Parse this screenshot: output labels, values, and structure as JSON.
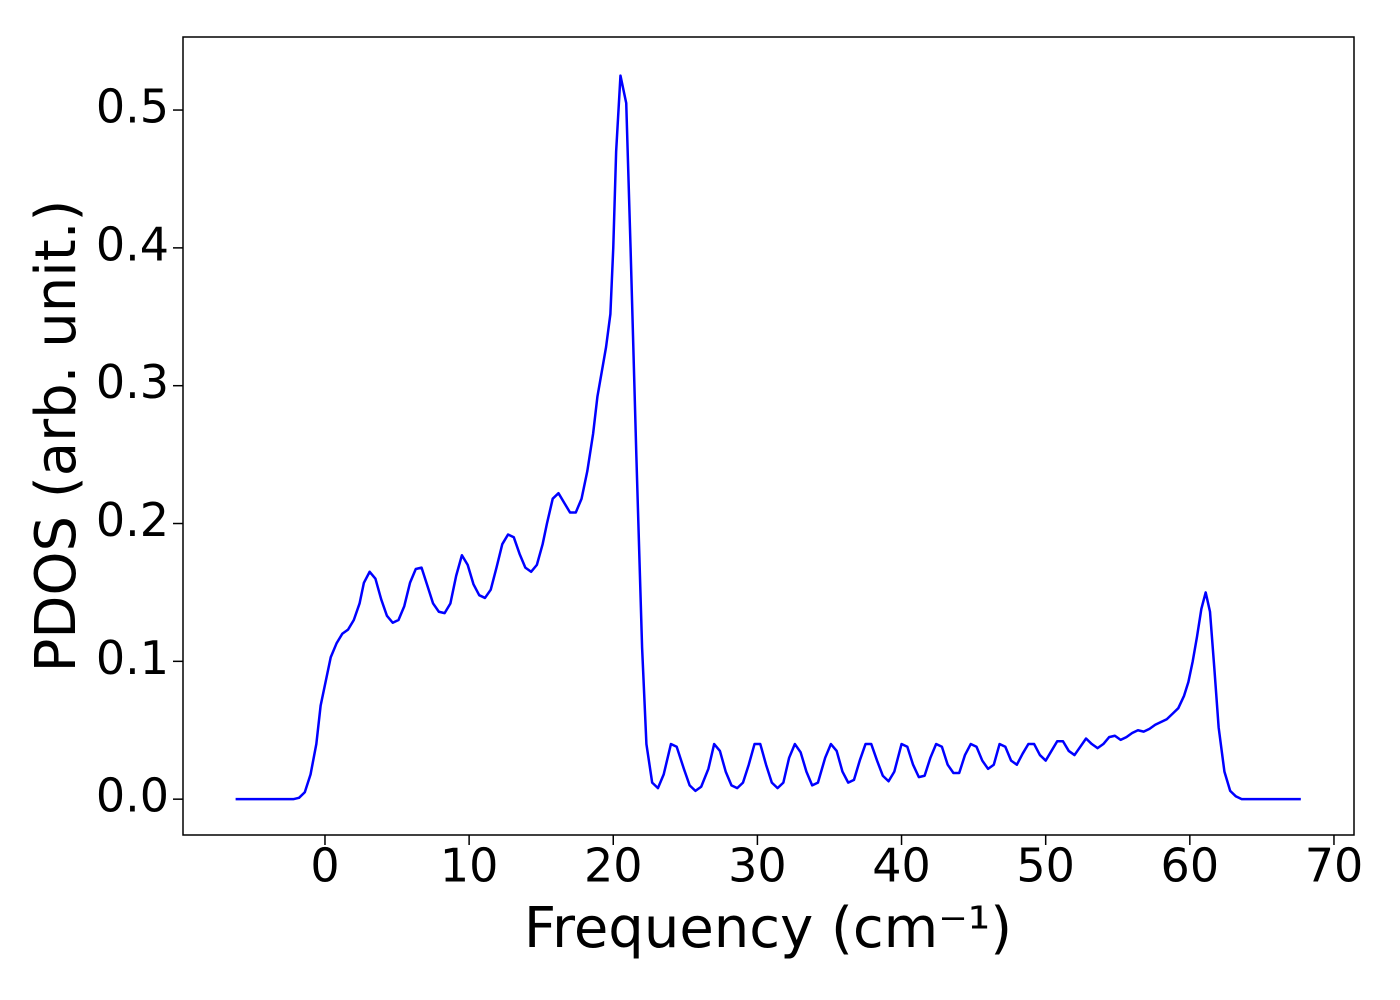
{
  "chart_data": {
    "type": "line",
    "xlabel": "Frequency (cm⁻¹)",
    "ylabel": "PDOS (arb. unit.)",
    "color": "#0000ff",
    "xlim": [
      -9.85,
      71.39
    ],
    "ylim": [
      -0.026,
      0.553
    ],
    "xticks": [
      0,
      10,
      20,
      30,
      40,
      50,
      60,
      70
    ],
    "yticks": [
      {
        "value": 0,
        "label": "0.0"
      },
      0.1,
      0.2,
      0.3,
      0.4,
      0.5
    ],
    "x": [
      -6.2,
      -2.2,
      -1.8,
      -1.4,
      -1.0,
      -0.6,
      -0.3,
      0.1,
      0.4,
      0.8,
      1.2,
      1.6,
      2.0,
      2.4,
      2.7,
      3.1,
      3.5,
      3.9,
      4.3,
      4.7,
      5.1,
      5.5,
      5.9,
      6.3,
      6.7,
      7.1,
      7.5,
      7.9,
      8.3,
      8.7,
      9.1,
      9.5,
      9.9,
      10.3,
      10.7,
      11.1,
      11.5,
      11.9,
      12.3,
      12.7,
      13.1,
      13.5,
      13.9,
      14.3,
      14.7,
      15.1,
      15.4,
      15.8,
      16.2,
      16.6,
      17.0,
      17.4,
      17.8,
      18.2,
      18.6,
      18.9,
      19.2,
      19.5,
      19.8,
      20.0,
      20.2,
      20.5,
      20.9,
      21.2,
      21.6,
      22.0,
      22.3,
      22.7,
      23.1,
      23.5,
      24.0,
      24.4,
      24.9,
      25.3,
      25.7,
      26.1,
      26.6,
      27.0,
      27.4,
      27.8,
      28.2,
      28.6,
      29.0,
      29.4,
      29.8,
      30.2,
      30.6,
      31.0,
      31.4,
      31.8,
      32.2,
      32.6,
      33.0,
      33.4,
      33.8,
      34.2,
      34.7,
      35.1,
      35.5,
      35.9,
      36.3,
      36.7,
      37.1,
      37.5,
      37.9,
      38.3,
      38.7,
      39.1,
      39.5,
      40.0,
      40.4,
      40.8,
      41.2,
      41.6,
      42.0,
      42.4,
      42.8,
      43.2,
      43.6,
      44.0,
      44.4,
      44.8,
      45.2,
      45.6,
      46.0,
      46.4,
      46.8,
      47.2,
      47.6,
      48.0,
      48.4,
      48.8,
      49.2,
      49.6,
      50.0,
      50.4,
      50.8,
      51.2,
      51.6,
      52.0,
      52.4,
      52.8,
      53.2,
      53.6,
      54.0,
      54.4,
      54.8,
      55.2,
      55.6,
      56.0,
      56.4,
      56.8,
      57.2,
      57.6,
      58.0,
      58.4,
      58.8,
      59.2,
      59.6,
      59.9,
      60.2,
      60.5,
      60.8,
      61.1,
      61.4,
      61.7,
      62.0,
      62.4,
      62.8,
      63.2,
      63.6,
      67.7
    ],
    "values": [
      0,
      0,
      0.001,
      0.005,
      0.018,
      0.04,
      0.068,
      0.088,
      0.103,
      0.113,
      0.12,
      0.123,
      0.13,
      0.142,
      0.157,
      0.165,
      0.16,
      0.145,
      0.133,
      0.128,
      0.13,
      0.14,
      0.157,
      0.167,
      0.168,
      0.155,
      0.142,
      0.136,
      0.135,
      0.142,
      0.162,
      0.177,
      0.17,
      0.156,
      0.148,
      0.146,
      0.152,
      0.168,
      0.185,
      0.192,
      0.19,
      0.178,
      0.168,
      0.165,
      0.17,
      0.185,
      0.2,
      0.218,
      0.222,
      0.215,
      0.208,
      0.208,
      0.218,
      0.238,
      0.265,
      0.292,
      0.31,
      0.328,
      0.352,
      0.4,
      0.47,
      0.525,
      0.505,
      0.4,
      0.25,
      0.11,
      0.04,
      0.012,
      0.008,
      0.018,
      0.04,
      0.038,
      0.022,
      0.01,
      0.006,
      0.009,
      0.022,
      0.04,
      0.035,
      0.02,
      0.01,
      0.008,
      0.012,
      0.025,
      0.04,
      0.04,
      0.025,
      0.012,
      0.008,
      0.012,
      0.03,
      0.04,
      0.034,
      0.02,
      0.01,
      0.012,
      0.03,
      0.04,
      0.035,
      0.02,
      0.012,
      0.014,
      0.028,
      0.04,
      0.04,
      0.028,
      0.017,
      0.013,
      0.02,
      0.04,
      0.038,
      0.025,
      0.016,
      0.017,
      0.03,
      0.04,
      0.038,
      0.025,
      0.019,
      0.019,
      0.032,
      0.04,
      0.038,
      0.028,
      0.022,
      0.025,
      0.04,
      0.038,
      0.028,
      0.025,
      0.033,
      0.04,
      0.04,
      0.032,
      0.028,
      0.035,
      0.042,
      0.042,
      0.035,
      0.032,
      0.038,
      0.044,
      0.04,
      0.037,
      0.04,
      0.045,
      0.046,
      0.043,
      0.045,
      0.048,
      0.05,
      0.049,
      0.051,
      0.054,
      0.056,
      0.058,
      0.062,
      0.066,
      0.075,
      0.085,
      0.1,
      0.118,
      0.138,
      0.15,
      0.136,
      0.095,
      0.052,
      0.02,
      0.006,
      0.002,
      0,
      0
    ]
  }
}
